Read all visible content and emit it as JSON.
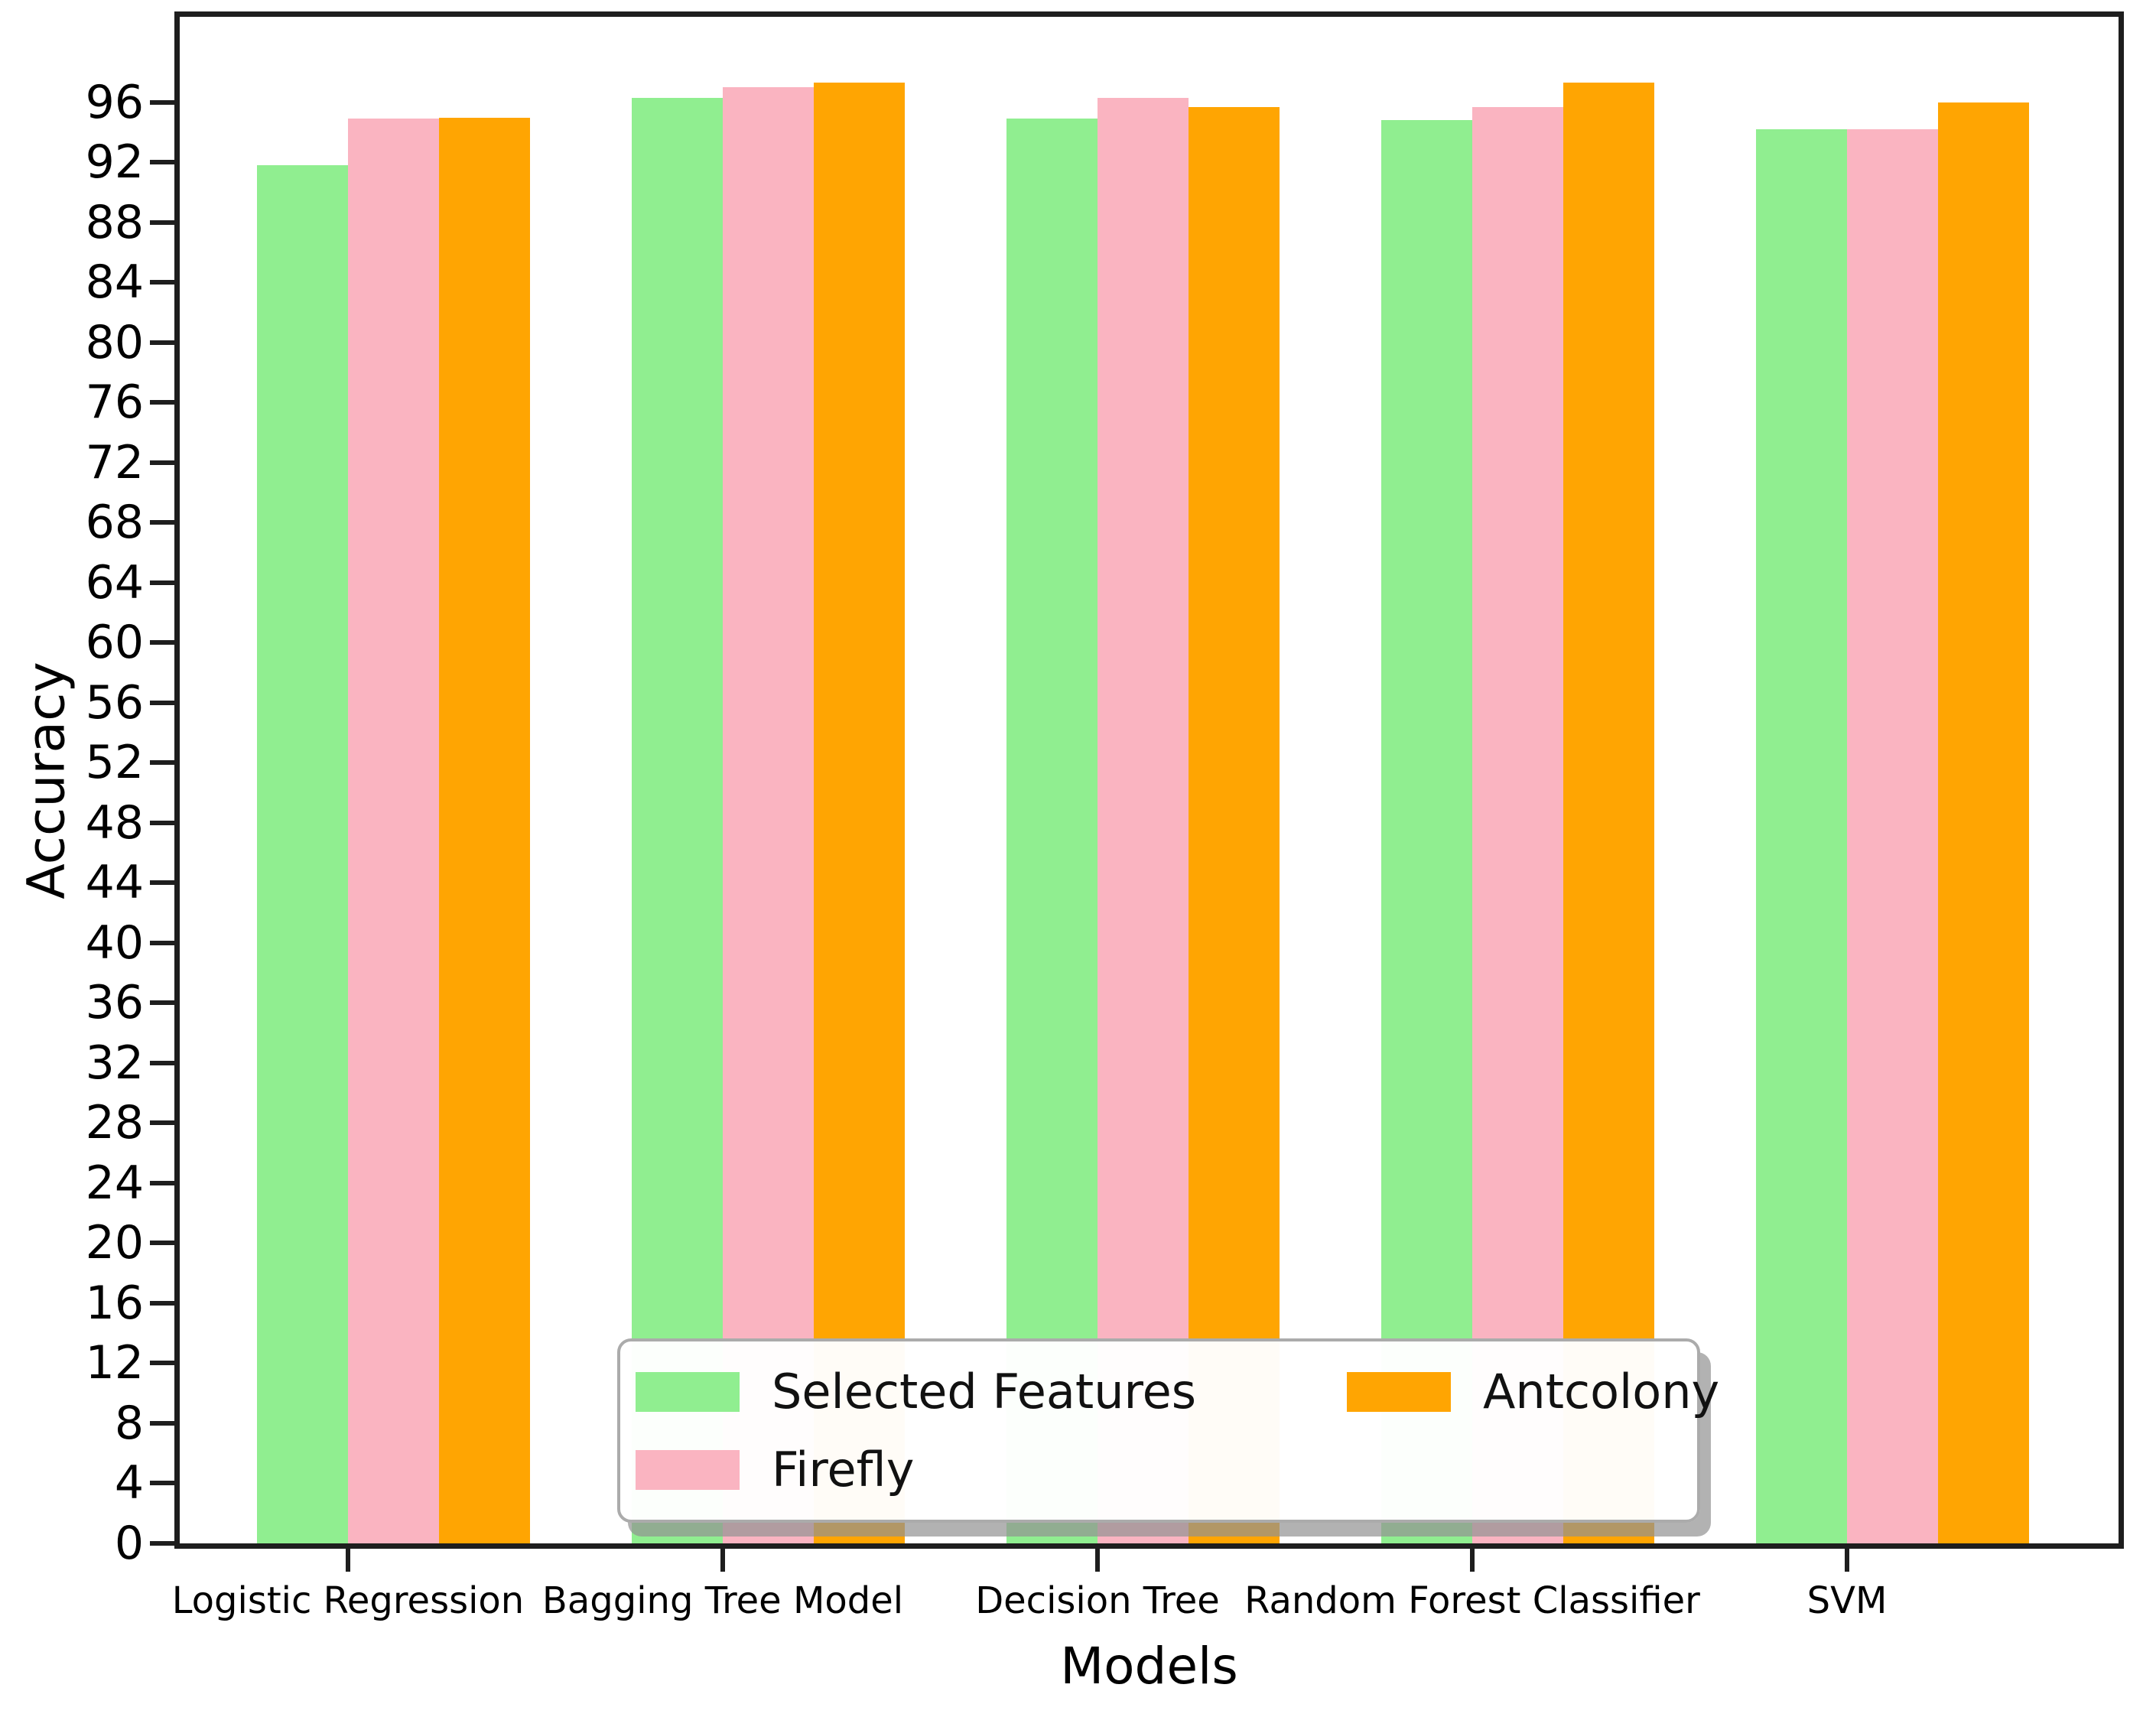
{
  "figure": {
    "background": "#ffffff",
    "axis_color": "#1e1e1e"
  },
  "chart_data": {
    "type": "bar",
    "title": "",
    "xlabel": "Models",
    "ylabel": "Accuracy",
    "categories": [
      "Logistic Regression",
      "Bagging Tree Model",
      "Decision Tree",
      "Random Forest Classifier",
      "SVM"
    ],
    "series": [
      {
        "name": "Selected Features",
        "color": "#90EE90",
        "values": [
          91.8,
          96.3,
          94.9,
          94.8,
          94.2
        ]
      },
      {
        "name": "Firefly",
        "color": "#FAB4C1",
        "values": [
          94.9,
          97.0,
          96.3,
          95.7,
          94.2
        ]
      },
      {
        "name": "Antcolony",
        "color": "#FFA502",
        "values": [
          95.0,
          97.3,
          95.7,
          97.3,
          96.0
        ]
      }
    ],
    "yticks": [
      0,
      4,
      8,
      12,
      16,
      20,
      24,
      28,
      32,
      36,
      40,
      44,
      48,
      52,
      56,
      60,
      64,
      68,
      72,
      76,
      80,
      84,
      88,
      92,
      96
    ],
    "ylim": [
      0,
      101.7
    ],
    "grid": false,
    "legend": {
      "position": "lower center",
      "columns": 2
    }
  }
}
